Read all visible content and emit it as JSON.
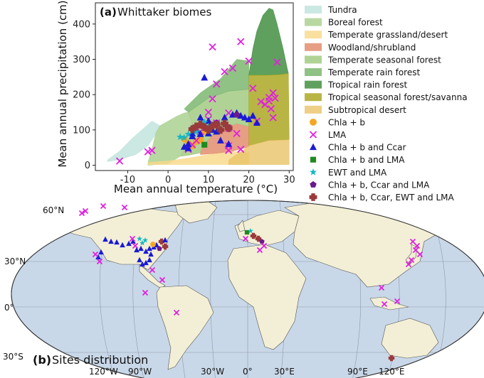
{
  "panel_a_label": "(a)",
  "panel_a_title": "Whittaker biomes",
  "panel_b_label": "(b)",
  "panel_b_title": "Sites distribution",
  "chart_data": [
    {
      "type": "scatter",
      "title": "Whittaker biomes",
      "xlabel": "Mean annual temperature (°C)",
      "ylabel": "Mean annual precipitation (cm)",
      "xlim": [
        -18,
        31
      ],
      "ylim": [
        -15,
        460
      ],
      "xticks": [
        "-10",
        "0",
        "10",
        "20",
        "30"
      ],
      "yticks": [
        "0",
        "100",
        "200",
        "300",
        "400"
      ],
      "grid": false,
      "legend_position": "right",
      "biomes": [
        {
          "name": "Tundra",
          "color": "#bfe3dc",
          "polygon": [
            [
              -15,
              10
            ],
            [
              -12,
              16
            ],
            [
              -8,
              30
            ],
            [
              -5,
              55
            ],
            [
              -3,
              88
            ],
            [
              -2,
              112
            ],
            [
              -4,
              125
            ],
            [
              -9,
              75
            ],
            [
              -12,
              40
            ],
            [
              -15,
              15
            ]
          ]
        },
        {
          "name": "Boreal forest",
          "color": "#a8d08d",
          "polygon": [
            [
              -5,
              8
            ],
            [
              -4,
              45
            ],
            [
              -3,
              92
            ],
            [
              -2,
              112
            ],
            [
              2,
              138
            ],
            [
              4,
              148
            ],
            [
              5,
              150
            ],
            [
              6,
              120
            ],
            [
              5,
              70
            ],
            [
              3,
              25
            ],
            [
              0,
              4
            ],
            [
              -5,
              0
            ]
          ]
        },
        {
          "name": "Temperate grassland/desert",
          "color": "#f9d98a",
          "polygon": [
            [
              -5,
              2
            ],
            [
              0,
              2
            ],
            [
              5,
              2
            ],
            [
              10,
              2
            ],
            [
              15,
              2
            ],
            [
              20,
              2
            ],
            [
              20,
              35
            ],
            [
              15,
              40
            ],
            [
              10,
              30
            ],
            [
              5,
              20
            ],
            [
              0,
              12
            ],
            [
              -5,
              8
            ]
          ]
        },
        {
          "name": "Woodland/shrubland",
          "color": "#e0896a",
          "polygon": [
            [
              8,
              30
            ],
            [
              12,
              34
            ],
            [
              16,
              40
            ],
            [
              20,
              52
            ],
            [
              20,
              110
            ],
            [
              17,
              118
            ],
            [
              14,
              105
            ],
            [
              11,
              86
            ],
            [
              9,
              60
            ],
            [
              8,
              40
            ]
          ]
        },
        {
          "name": "Temperate seasonal forest",
          "color": "#9fc97e",
          "polygon": [
            [
              3,
              25
            ],
            [
              5,
              65
            ],
            [
              6,
              120
            ],
            [
              5,
              150
            ],
            [
              10,
              190
            ],
            [
              15,
              210
            ],
            [
              20,
              215
            ],
            [
              20,
              110
            ],
            [
              17,
              118
            ],
            [
              14,
              105
            ],
            [
              11,
              86
            ],
            [
              9,
              60
            ],
            [
              8,
              35
            ],
            [
              5,
              28
            ]
          ]
        },
        {
          "name": "Temperate rain forest",
          "color": "#77b36a",
          "polygon": [
            [
              5,
              150
            ],
            [
              10,
              190
            ],
            [
              15,
              210
            ],
            [
              20,
              215
            ],
            [
              20,
              295
            ],
            [
              17,
              300
            ],
            [
              13,
              245
            ],
            [
              8,
              205
            ],
            [
              4,
              160
            ]
          ]
        },
        {
          "name": "Tropical rain forest",
          "color": "#3d8b3b",
          "polygon": [
            [
              20,
              255
            ],
            [
              21,
              330
            ],
            [
              22,
              380
            ],
            [
              23.5,
              425
            ],
            [
              25,
              445
            ],
            [
              26,
              440
            ],
            [
              27,
              400
            ],
            [
              28.5,
              330
            ],
            [
              29.5,
              275
            ],
            [
              29.8,
              260
            ],
            [
              28,
              257
            ],
            [
              24,
              255
            ]
          ]
        },
        {
          "name": "Tropical seasonal forest/savanna",
          "color": "#a8a51c",
          "polygon": [
            [
              20,
              55
            ],
            [
              25,
              70
            ],
            [
              30,
              72
            ],
            [
              29.8,
              260
            ],
            [
              28,
              257
            ],
            [
              24,
              255
            ],
            [
              20,
              255
            ]
          ]
        },
        {
          "name": "Subtropical desert",
          "color": "#e9c46a",
          "polygon": [
            [
              15,
              2
            ],
            [
              20,
              2
            ],
            [
              25,
              2
            ],
            [
              30,
              2
            ],
            [
              30,
              72
            ],
            [
              25,
              70
            ],
            [
              20,
              55
            ],
            [
              18,
              38
            ],
            [
              15,
              15
            ]
          ]
        }
      ],
      "series": [
        {
          "name": "Chla + b",
          "marker": "circle",
          "color": "#f5a623",
          "points": [
            [
              4,
              75
            ],
            [
              5,
              62
            ],
            [
              6,
              55
            ],
            [
              7,
              68
            ],
            [
              8,
              72
            ],
            [
              9,
              95
            ]
          ]
        },
        {
          "name": "LMA",
          "marker": "x",
          "color": "#e020e0",
          "points": [
            [
              -12,
              12
            ],
            [
              -5,
              38
            ],
            [
              -4,
              42
            ],
            [
              5,
              45
            ],
            [
              6,
              58
            ],
            [
              7,
              70
            ],
            [
              8,
              95
            ],
            [
              9,
              118
            ],
            [
              10,
              130
            ],
            [
              10,
              150
            ],
            [
              11,
              335
            ],
            [
              11,
              188
            ],
            [
              12,
              230
            ],
            [
              12,
              120
            ],
            [
              14,
              265
            ],
            [
              15,
              148
            ],
            [
              15,
              105
            ],
            [
              15,
              55
            ],
            [
              15,
              42
            ],
            [
              16,
              275
            ],
            [
              17,
              90
            ],
            [
              18,
              350
            ],
            [
              18,
              45
            ],
            [
              20,
              295
            ],
            [
              21,
              218
            ],
            [
              22,
              125
            ],
            [
              23,
              180
            ],
            [
              24,
              172
            ],
            [
              25,
              192
            ],
            [
              25,
              182
            ],
            [
              25.5,
              160
            ],
            [
              26,
              135
            ],
            [
              26,
              205
            ],
            [
              26.5,
              190
            ],
            [
              27,
              292
            ]
          ]
        },
        {
          "name": "Chla + b and Ccar",
          "marker": "triangle",
          "color": "#1a1ad6",
          "points": [
            [
              4,
              52
            ],
            [
              5,
              48
            ],
            [
              5,
              60
            ],
            [
              6,
              82
            ],
            [
              6,
              90
            ],
            [
              7,
              100
            ],
            [
              8,
              88
            ],
            [
              8,
              135
            ],
            [
              9,
              115
            ],
            [
              9,
              248
            ],
            [
              10,
              125
            ],
            [
              10,
              90
            ],
            [
              11,
              100
            ],
            [
              12,
              95
            ],
            [
              13,
              70
            ],
            [
              14,
              135
            ],
            [
              15,
              60
            ],
            [
              16,
              143
            ],
            [
              17,
              148
            ],
            [
              18,
              140
            ],
            [
              19,
              135
            ],
            [
              20,
              130
            ],
            [
              21,
              140
            ],
            [
              22,
              120
            ]
          ]
        },
        {
          "name": "Chla + b and LMA",
          "marker": "square",
          "color": "#1e8a1e",
          "points": [
            [
              9,
              58
            ]
          ]
        },
        {
          "name": "EWT and LMA",
          "marker": "star",
          "color": "#14b8c4",
          "points": [
            [
              3,
              80
            ],
            [
              4,
              78
            ],
            [
              5,
              88
            ],
            [
              6,
              105
            ],
            [
              7,
              95
            ],
            [
              8,
              115
            ],
            [
              9,
              122
            ],
            [
              10,
              110
            ]
          ]
        },
        {
          "name": "Chla + b, Ccar and LMA",
          "marker": "pentagon",
          "color": "#6a1a8a",
          "points": [
            [
              12,
              120
            ],
            [
              17,
              143
            ]
          ]
        },
        {
          "name": "Chla + b, Ccar, EWT and LMA",
          "marker": "plus",
          "color": "#9a3a3a",
          "points": [
            [
              6,
              102
            ],
            [
              7,
              110
            ],
            [
              8,
              115
            ],
            [
              9,
              108
            ],
            [
              10,
              100
            ],
            [
              11,
              112
            ],
            [
              12,
              115
            ],
            [
              13,
              100
            ],
            [
              14,
              118
            ],
            [
              15,
              105
            ]
          ]
        }
      ]
    }
  ],
  "map": {
    "lat_ticks": [
      "60°N",
      "30°N",
      "0°",
      "30°S"
    ],
    "lon_ticks": [
      "120°W",
      "90°W",
      "30°W",
      "0°",
      "30°E",
      "90°E",
      "120°E"
    ],
    "ocean_color": "#c9d8e8",
    "land_color": "#f3efd6"
  }
}
